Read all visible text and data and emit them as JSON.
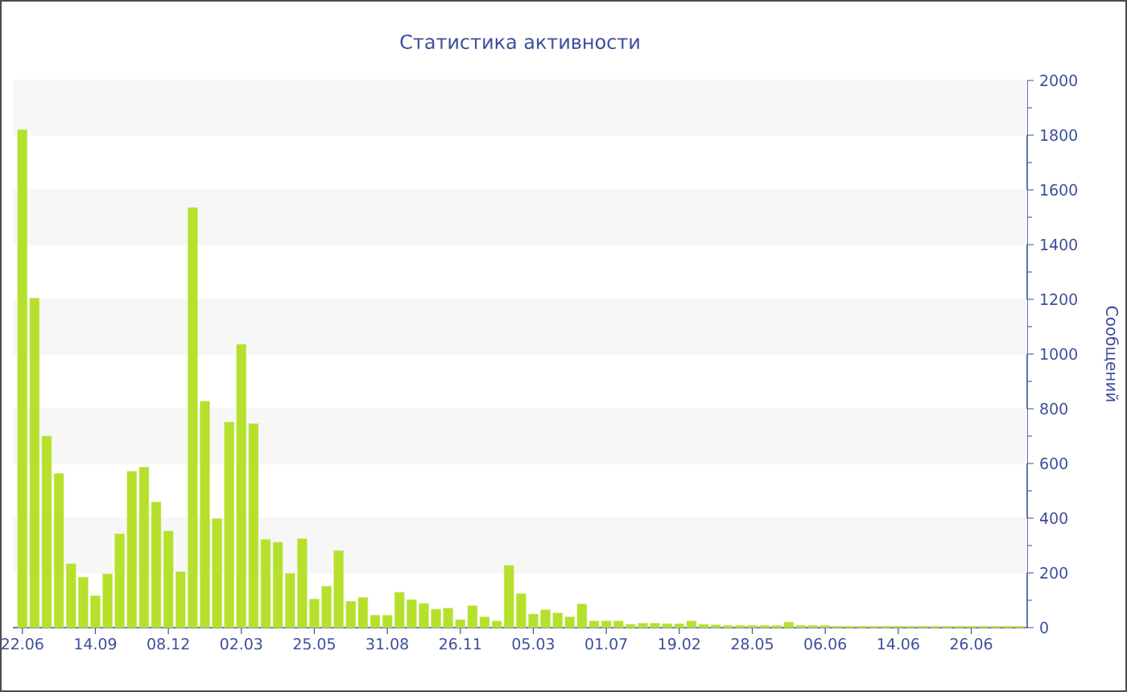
{
  "chart_data": {
    "type": "bar",
    "title": "Статистика активности",
    "ylabel": "Сообщений",
    "categories": [
      "22.06",
      null,
      null,
      null,
      null,
      null,
      "14.09",
      null,
      null,
      null,
      null,
      null,
      "08.12",
      null,
      null,
      null,
      null,
      null,
      "02.03",
      null,
      null,
      null,
      null,
      null,
      "25.05",
      null,
      null,
      null,
      null,
      null,
      "31.08",
      null,
      null,
      null,
      null,
      null,
      "26.11",
      null,
      null,
      null,
      null,
      null,
      "05.03",
      null,
      null,
      null,
      null,
      null,
      "01.07",
      null,
      null,
      null,
      null,
      null,
      "19.02",
      null,
      null,
      null,
      null,
      null,
      "28.05",
      null,
      null,
      null,
      null,
      null,
      "06.06",
      null,
      null,
      null,
      null,
      null,
      "14.06",
      null,
      null,
      null,
      null,
      null,
      "26.06",
      null,
      null,
      null,
      null
    ],
    "values": [
      1820,
      1204,
      700,
      563,
      233,
      184,
      116,
      196,
      343,
      571,
      586,
      459,
      353,
      204,
      1535,
      827,
      398,
      751,
      1035,
      745,
      322,
      312,
      198,
      325,
      104,
      151,
      281,
      96,
      110,
      45,
      45,
      129,
      102,
      88,
      67,
      71,
      29,
      80,
      39,
      24,
      227,
      124,
      49,
      65,
      53,
      39,
      86,
      24,
      24,
      24,
      12,
      16,
      16,
      14,
      14,
      24,
      12,
      10,
      8,
      8,
      8,
      8,
      8,
      20,
      8,
      8,
      8,
      5,
      5,
      5,
      5,
      5,
      5,
      5,
      5,
      5,
      5,
      5,
      5,
      5,
      5,
      5,
      5
    ],
    "color": "#b5e02b",
    "ylim": [
      0,
      2000
    ],
    "yticks": [
      0,
      200,
      400,
      600,
      800,
      1000,
      1200,
      1400,
      1600,
      1800,
      2000
    ],
    "grid": "y"
  }
}
